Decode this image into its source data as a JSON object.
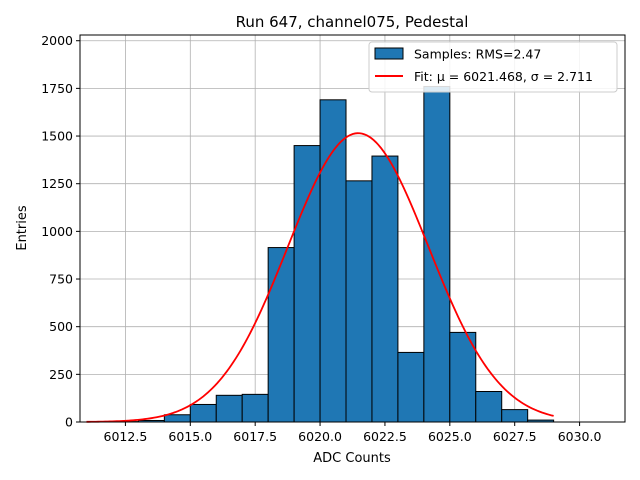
{
  "chart_data": {
    "type": "bar",
    "title": "Run 647, channel075, Pedestal",
    "xlabel": "ADC Counts",
    "ylabel": "Entries",
    "xlim": [
      6010.75,
      6031.75
    ],
    "ylim": [
      0,
      2030
    ],
    "grid": true,
    "xticks": [
      6012.5,
      6015.0,
      6017.5,
      6020.0,
      6022.5,
      6025.0,
      6027.5,
      6030.0
    ],
    "xtick_labels": [
      "6012.5",
      "6015.0",
      "6017.5",
      "6020.0",
      "6022.5",
      "6025.0",
      "6027.5",
      "6030.0"
    ],
    "yticks": [
      0,
      250,
      500,
      750,
      1000,
      1250,
      1500,
      1750,
      2000
    ],
    "ytick_labels": [
      "0",
      "250",
      "500",
      "750",
      "1000",
      "1250",
      "1500",
      "1750",
      "2000"
    ],
    "bins": [
      {
        "x0": 6012,
        "x1": 6013,
        "count": 2
      },
      {
        "x0": 6013,
        "x1": 6014,
        "count": 8
      },
      {
        "x0": 6014,
        "x1": 6015,
        "count": 38
      },
      {
        "x0": 6015,
        "x1": 6016,
        "count": 92
      },
      {
        "x0": 6016,
        "x1": 6017,
        "count": 140
      },
      {
        "x0": 6017,
        "x1": 6018,
        "count": 145
      },
      {
        "x0": 6018,
        "x1": 6019,
        "count": 915
      },
      {
        "x0": 6019,
        "x1": 6020,
        "count": 1450
      },
      {
        "x0": 6020,
        "x1": 6021,
        "count": 1690
      },
      {
        "x0": 6021,
        "x1": 6022,
        "count": 1265
      },
      {
        "x0": 6022,
        "x1": 6023,
        "count": 1395
      },
      {
        "x0": 6023,
        "x1": 6024,
        "count": 365
      },
      {
        "x0": 6024,
        "x1": 6025,
        "count": 1760
      },
      {
        "x0": 6025,
        "x1": 6026,
        "count": 470
      },
      {
        "x0": 6026,
        "x1": 6027,
        "count": 160
      },
      {
        "x0": 6027,
        "x1": 6028,
        "count": 65
      },
      {
        "x0": 6028,
        "x1": 6029,
        "count": 10
      }
    ],
    "fit": {
      "mu": 6021.468,
      "sigma": 2.711,
      "amplitude": 1515,
      "x_range": [
        6011,
        6029
      ]
    },
    "legend": {
      "position": "top-right",
      "entries": [
        {
          "label": "Samples: RMS=2.47",
          "kind": "patch"
        },
        {
          "label": "Fit: μ = 6021.468, σ = 2.711",
          "kind": "line"
        }
      ]
    },
    "colors": {
      "bar": "#1f77b4",
      "bar_edge": "#000000",
      "fit": "#ff0000",
      "grid": "#b0b0b0"
    }
  }
}
